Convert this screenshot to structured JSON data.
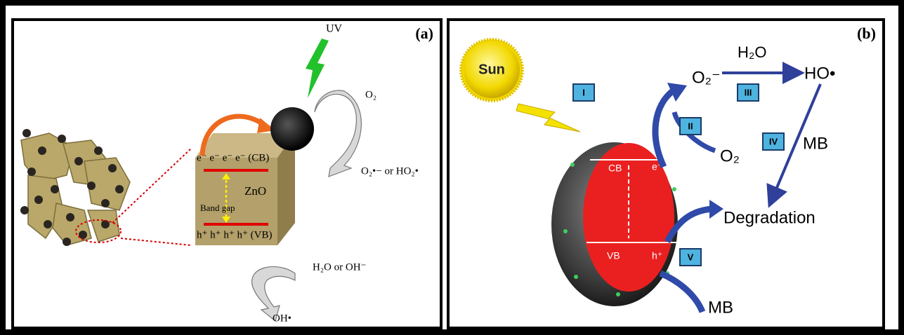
{
  "panel_a": {
    "label": "(a)",
    "uv": "UV",
    "o2": "O₂",
    "superoxide": "O₂•− or HO₂•",
    "cb": "e⁻ e⁻ e⁻ e⁻ (CB)",
    "material": "ZnO",
    "band_gap": "Band gap",
    "vb": "h⁺ h⁺ h⁺ h⁺ (VB)",
    "water": "H₂O or OH⁻",
    "hydroxyl": "OH•"
  },
  "panel_b": {
    "label": "(b)",
    "sun": "Sun",
    "steps": [
      "I",
      "II",
      "III",
      "IV",
      "V"
    ],
    "superoxide": "O₂⁻",
    "water": "H₂O",
    "hydroxyl": "HO•",
    "o2": "O₂",
    "mb_top": "MB",
    "cb": "CB",
    "electron": "e⁻",
    "vb": "VB",
    "hole": "h⁺",
    "degradation": "Degradation",
    "mb_bottom": "MB"
  }
}
